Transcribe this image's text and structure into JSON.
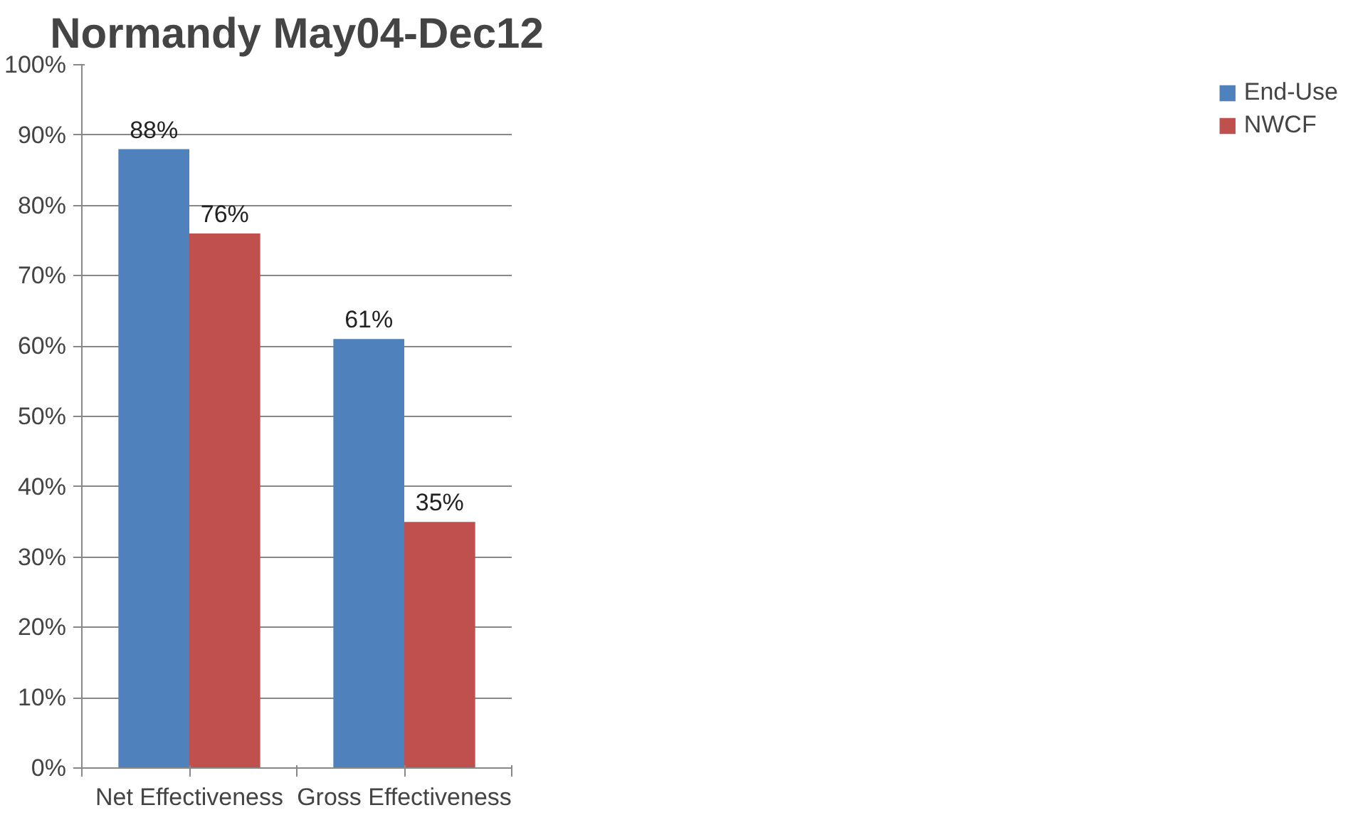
{
  "chart_data": {
    "type": "bar",
    "title": "Normandy May04-Dec12",
    "categories": [
      "Net Effectiveness",
      "Gross Effectiveness"
    ],
    "series": [
      {
        "name": "End-Use",
        "color": "#4f81bd",
        "values": [
          88,
          61
        ],
        "value_labels": [
          "88%",
          "61%"
        ]
      },
      {
        "name": "NWCF",
        "color": "#c0504d",
        "values": [
          76,
          35
        ],
        "value_labels": [
          "76%",
          "35%"
        ]
      }
    ],
    "ylim": [
      0,
      100
    ],
    "yticks": [
      {
        "value": 0,
        "label": "0%"
      },
      {
        "value": 10,
        "label": "10%"
      },
      {
        "value": 20,
        "label": "20%"
      },
      {
        "value": 30,
        "label": "30%"
      },
      {
        "value": 40,
        "label": "40%"
      },
      {
        "value": 50,
        "label": "50%"
      },
      {
        "value": 60,
        "label": "60%"
      },
      {
        "value": 70,
        "label": "70%"
      },
      {
        "value": 80,
        "label": "80%"
      },
      {
        "value": 90,
        "label": "90%"
      },
      {
        "value": 100,
        "label": "100%"
      }
    ],
    "grid": "y",
    "legend": "right"
  }
}
